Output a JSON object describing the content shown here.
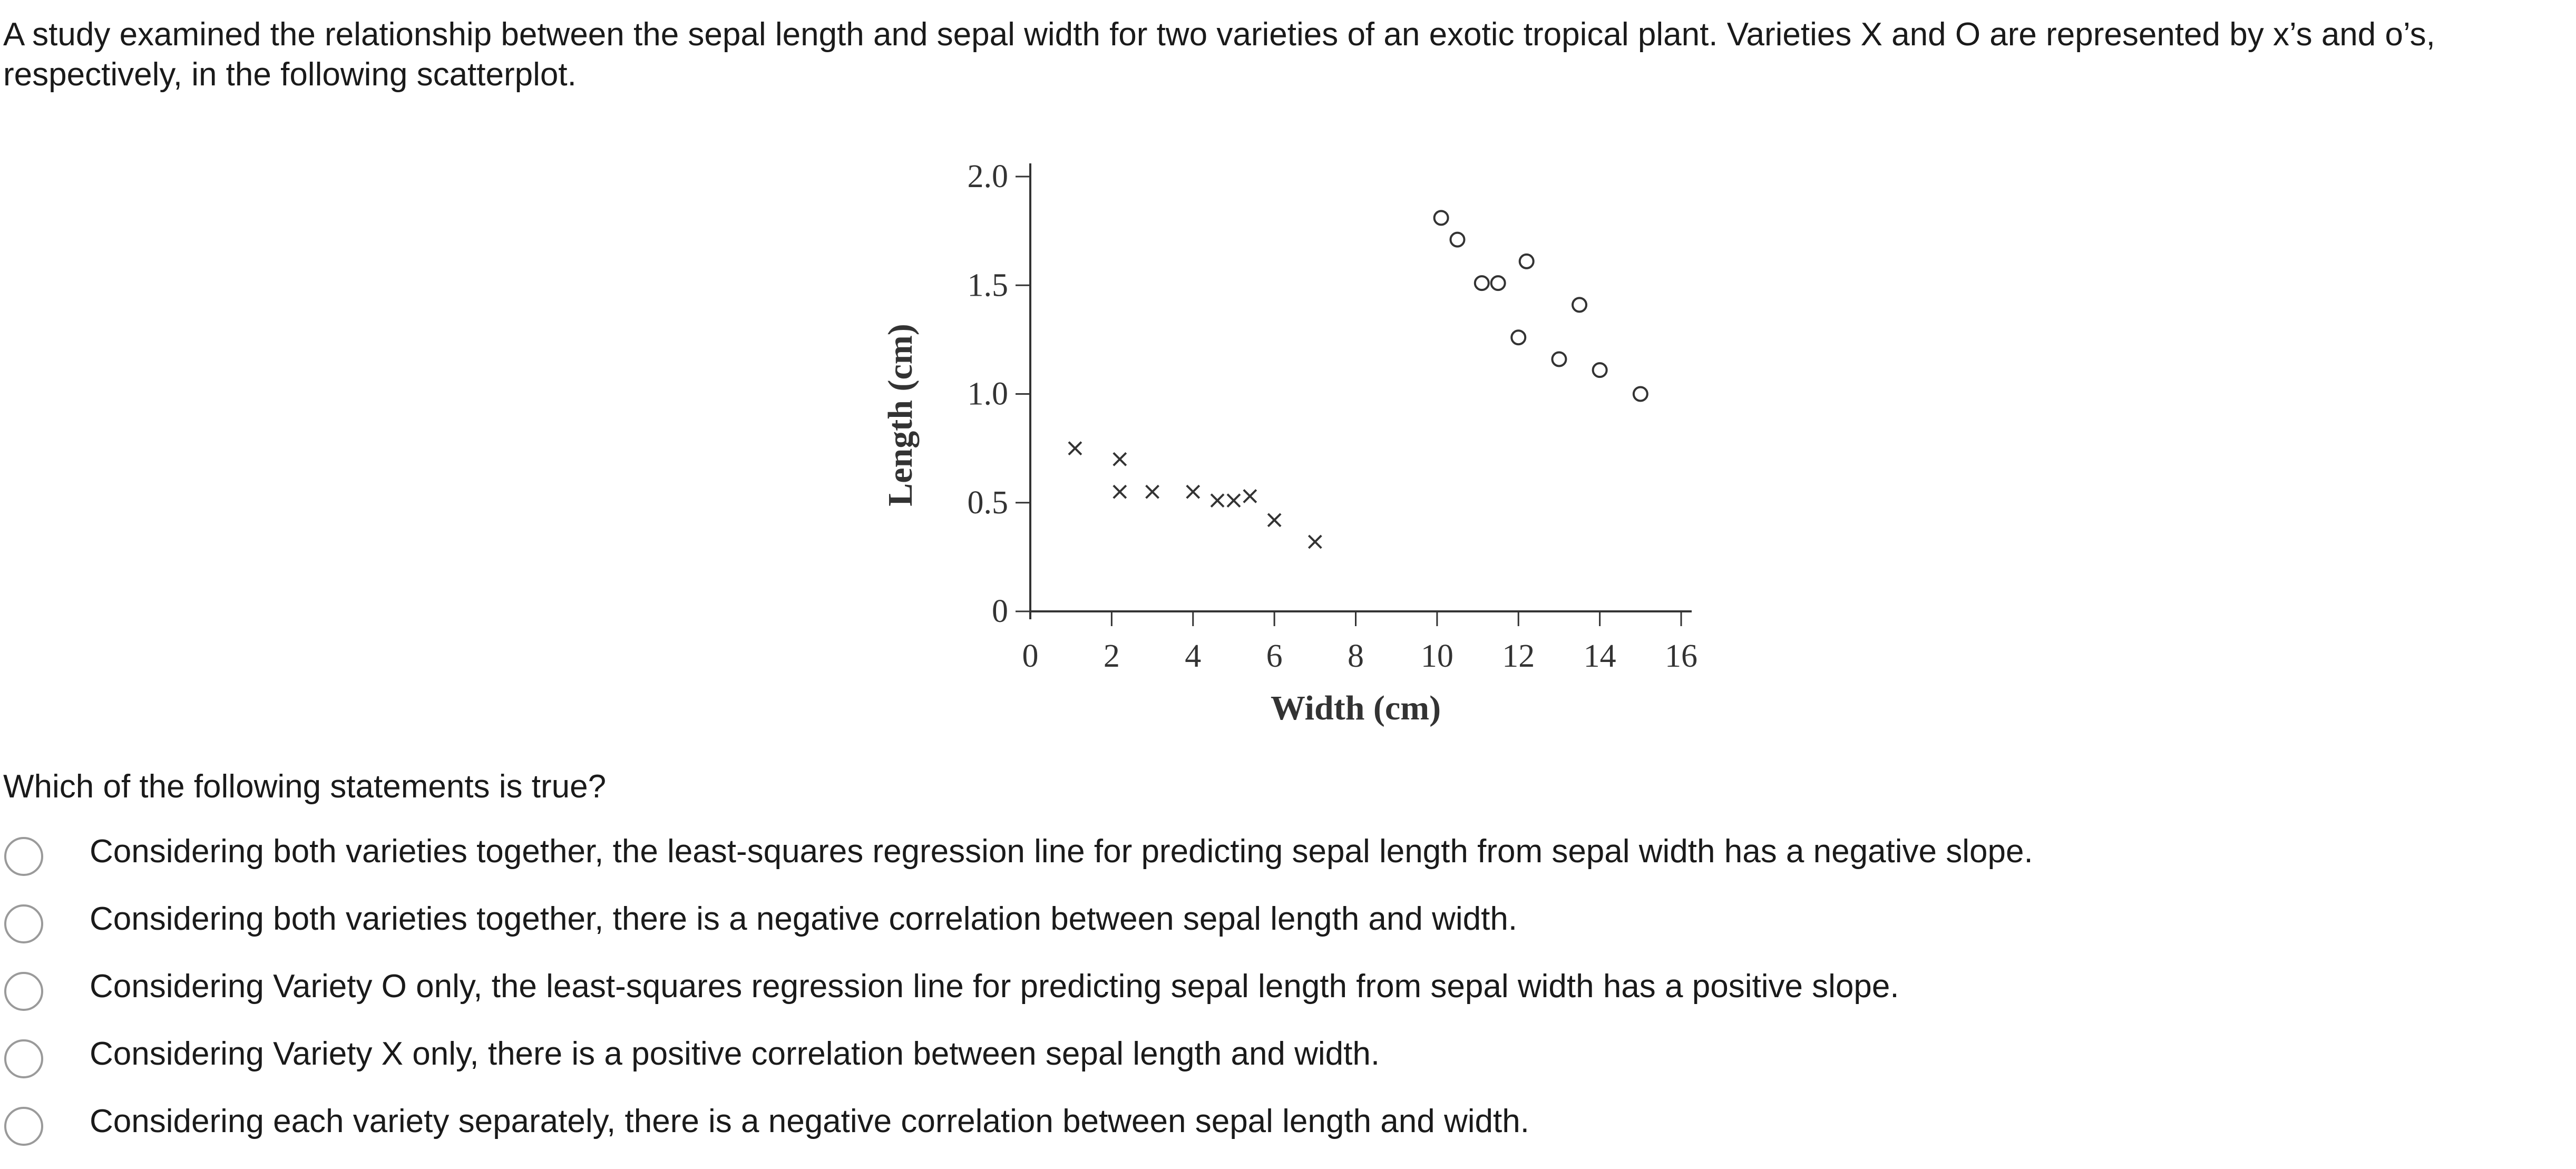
{
  "intro": "A study examined the relationship between the sepal length and sepal width for two varieties of an exotic tropical plant. Varieties X and O are represented by x’s and o’s, respectively, in the following scatterplot.",
  "question": "Which of the following statements is true?",
  "choices": [
    "Considering both varieties together, the least-squares regression line for predicting sepal length from sepal width has a negative slope.",
    "Considering both varieties together, there is a negative correlation between sepal length and width.",
    "Considering Variety O only, the least-squares regression line for predicting sepal length from sepal width has a positive slope.",
    "Considering Variety X only, there is a positive correlation between sepal length and width.",
    "Considering each variety separately, there is a negative correlation between sepal length and width."
  ],
  "chart_data": {
    "type": "scatter",
    "xlabel": "Width (cm)",
    "ylabel": "Length (cm)",
    "xlim": [
      0,
      16
    ],
    "ylim": [
      0,
      2.0
    ],
    "xticks": [
      "0",
      "2",
      "4",
      "6",
      "8",
      "10",
      "12",
      "14",
      "16"
    ],
    "yticks": [
      "0",
      "0.5",
      "1.0",
      "1.5",
      "2.0"
    ],
    "grid": false,
    "series": [
      {
        "marker": "x",
        "color": "#333333",
        "points": [
          [
            1.1,
            0.75
          ],
          [
            2.2,
            0.7
          ],
          [
            2.2,
            0.55
          ],
          [
            3.0,
            0.55
          ],
          [
            4.0,
            0.55
          ],
          [
            4.6,
            0.51
          ],
          [
            5.0,
            0.51
          ],
          [
            5.4,
            0.53
          ],
          [
            6.0,
            0.42
          ],
          [
            7.0,
            0.32
          ]
        ]
      },
      {
        "marker": "o",
        "color": "#333333",
        "points": [
          [
            10.1,
            1.81
          ],
          [
            10.5,
            1.71
          ],
          [
            11.1,
            1.51
          ],
          [
            11.5,
            1.51
          ],
          [
            12.2,
            1.61
          ],
          [
            13.5,
            1.41
          ],
          [
            12.0,
            1.26
          ],
          [
            13.0,
            1.16
          ],
          [
            14.0,
            1.11
          ],
          [
            15.0,
            1.0
          ]
        ]
      }
    ]
  }
}
